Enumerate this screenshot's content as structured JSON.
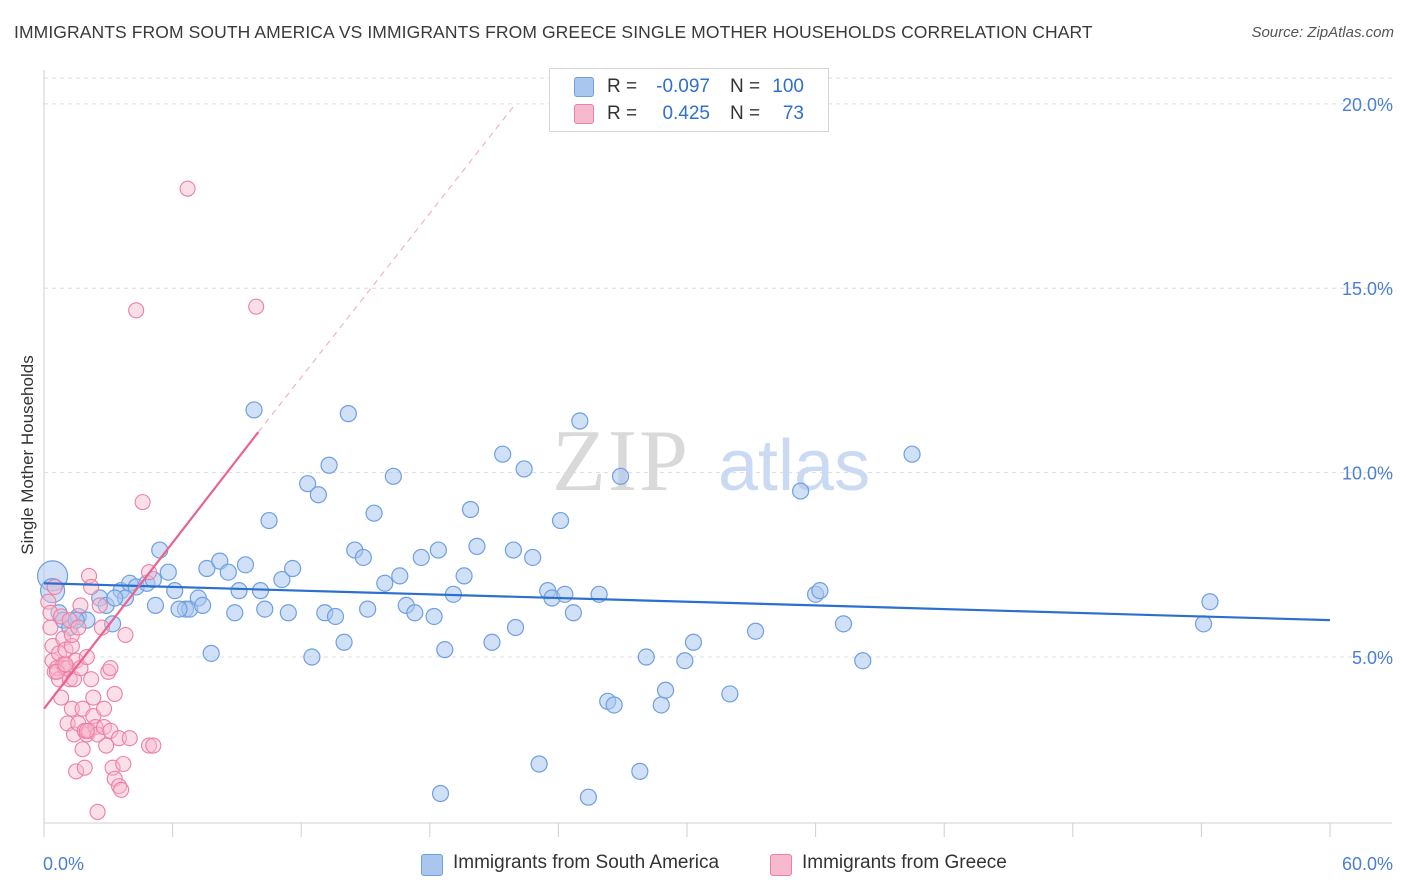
{
  "title": "IMMIGRANTS FROM SOUTH AMERICA VS IMMIGRANTS FROM GREECE SINGLE MOTHER HOUSEHOLDS CORRELATION CHART",
  "source": "Source: ZipAtlas.com",
  "watermark": {
    "zip": "ZIP",
    "atlas": "atlas"
  },
  "colors": {
    "blue_fill": "#a9c6ee",
    "blue_edge": "#6f9fe0",
    "blue_line": "#2c6fcf",
    "pink_fill": "#f6b9cd",
    "pink_edge": "#ec7fa3",
    "pink_line": "#e8638f",
    "axis_text": "#4a7fd4",
    "grid": "#dcdcdc"
  },
  "stats": {
    "rows": [
      {
        "r_label": "R =",
        "r_value": "-0.097",
        "n_label": "N =",
        "n_value": "100"
      },
      {
        "r_label": "R =",
        "r_value": "0.425",
        "n_label": "N =",
        "n_value": "73"
      }
    ]
  },
  "legend": {
    "items": [
      {
        "label": "Immigrants from South America"
      },
      {
        "label": "Immigrants from Greece"
      }
    ]
  },
  "chart_data": {
    "type": "scatter",
    "title": "IMMIGRANTS FROM SOUTH AMERICA VS IMMIGRANTS FROM GREECE SINGLE MOTHER HOUSEHOLDS CORRELATION CHART",
    "xlabel": "",
    "ylabel": "Single Mother Households",
    "xlim": [
      0,
      60
    ],
    "ylim": [
      0.5,
      20.7
    ],
    "x_tick_labels": [
      "0.0%",
      "60.0%"
    ],
    "y_ticks": [
      5,
      10,
      15,
      20
    ],
    "y_tick_labels": [
      "5.0%",
      "10.0%",
      "15.0%",
      "20.0%"
    ],
    "grid": true,
    "legend_position": "bottom",
    "series": [
      {
        "name": "Immigrants from South America",
        "trend": {
          "x": [
            0,
            60
          ],
          "y": [
            7.0,
            6.0
          ]
        },
        "points": [
          [
            0.4,
            7.2
          ],
          [
            0.4,
            6.8
          ],
          [
            0.7,
            6.2
          ],
          [
            0.9,
            6.0
          ],
          [
            1.2,
            5.8
          ],
          [
            1.6,
            6.1
          ],
          [
            2.0,
            6.0
          ],
          [
            2.6,
            6.6
          ],
          [
            2.9,
            6.4
          ],
          [
            3.2,
            5.9
          ],
          [
            3.6,
            6.8
          ],
          [
            3.8,
            6.6
          ],
          [
            4.0,
            7.0
          ],
          [
            4.3,
            6.9
          ],
          [
            4.8,
            7.0
          ],
          [
            5.1,
            7.1
          ],
          [
            5.2,
            6.4
          ],
          [
            5.4,
            7.9
          ],
          [
            5.8,
            7.3
          ],
          [
            6.1,
            6.8
          ],
          [
            6.6,
            6.3
          ],
          [
            6.8,
            6.3
          ],
          [
            7.2,
            6.6
          ],
          [
            7.4,
            6.4
          ],
          [
            7.6,
            7.4
          ],
          [
            7.8,
            5.1
          ],
          [
            8.2,
            7.6
          ],
          [
            8.6,
            7.3
          ],
          [
            8.9,
            6.2
          ],
          [
            9.1,
            6.8
          ],
          [
            9.4,
            7.5
          ],
          [
            9.8,
            11.7
          ],
          [
            10.1,
            6.8
          ],
          [
            10.3,
            6.3
          ],
          [
            10.5,
            8.7
          ],
          [
            11.1,
            7.1
          ],
          [
            11.4,
            6.2
          ],
          [
            11.6,
            7.4
          ],
          [
            12.3,
            9.7
          ],
          [
            12.5,
            5.0
          ],
          [
            12.8,
            9.4
          ],
          [
            13.1,
            6.2
          ],
          [
            13.3,
            10.2
          ],
          [
            13.6,
            6.1
          ],
          [
            14.0,
            5.4
          ],
          [
            14.2,
            11.6
          ],
          [
            14.5,
            7.9
          ],
          [
            14.9,
            7.7
          ],
          [
            15.1,
            6.3
          ],
          [
            15.4,
            8.9
          ],
          [
            15.9,
            7.0
          ],
          [
            16.3,
            9.9
          ],
          [
            16.6,
            7.2
          ],
          [
            16.9,
            6.4
          ],
          [
            17.3,
            6.2
          ],
          [
            17.6,
            7.7
          ],
          [
            18.2,
            6.1
          ],
          [
            18.4,
            7.9
          ],
          [
            18.7,
            5.2
          ],
          [
            19.1,
            6.7
          ],
          [
            19.6,
            7.2
          ],
          [
            19.9,
            9.0
          ],
          [
            20.2,
            8.0
          ],
          [
            20.9,
            5.4
          ],
          [
            21.4,
            10.5
          ],
          [
            21.9,
            7.9
          ],
          [
            22.0,
            5.8
          ],
          [
            22.4,
            10.1
          ],
          [
            22.8,
            7.7
          ],
          [
            23.1,
            2.1
          ],
          [
            23.5,
            6.8
          ],
          [
            23.7,
            6.6
          ],
          [
            24.1,
            8.7
          ],
          [
            24.3,
            6.7
          ],
          [
            24.7,
            6.2
          ],
          [
            25.0,
            11.4
          ],
          [
            25.4,
            1.2
          ],
          [
            25.9,
            6.7
          ],
          [
            26.3,
            3.8
          ],
          [
            26.6,
            3.7
          ],
          [
            26.9,
            9.9
          ],
          [
            27.8,
            1.9
          ],
          [
            28.1,
            5.0
          ],
          [
            28.8,
            3.7
          ],
          [
            29.0,
            4.1
          ],
          [
            29.9,
            4.9
          ],
          [
            30.3,
            5.4
          ],
          [
            32.0,
            4.0
          ],
          [
            33.2,
            5.7
          ],
          [
            35.3,
            9.5
          ],
          [
            36.0,
            6.7
          ],
          [
            36.2,
            6.8
          ],
          [
            37.3,
            5.9
          ],
          [
            38.2,
            4.9
          ],
          [
            40.5,
            10.5
          ],
          [
            18.5,
            1.3
          ],
          [
            6.3,
            6.3
          ],
          [
            3.3,
            6.6
          ],
          [
            1.5,
            6.0
          ],
          [
            54.1,
            5.9
          ],
          [
            54.4,
            6.5
          ]
        ]
      },
      {
        "name": "Immigrants from Greece",
        "trend": {
          "x": [
            0,
            10
          ],
          "y": [
            3.6,
            11.1
          ]
        },
        "trend_extension": {
          "x": [
            10,
            22
          ],
          "y": [
            11.1,
            20.0
          ]
        },
        "points": [
          [
            0.2,
            6.5
          ],
          [
            0.3,
            6.2
          ],
          [
            0.3,
            5.8
          ],
          [
            0.4,
            5.3
          ],
          [
            0.4,
            4.9
          ],
          [
            0.5,
            4.6
          ],
          [
            0.5,
            6.9
          ],
          [
            0.6,
            4.7
          ],
          [
            0.7,
            5.1
          ],
          [
            0.7,
            4.4
          ],
          [
            0.8,
            3.9
          ],
          [
            0.8,
            6.1
          ],
          [
            0.9,
            5.5
          ],
          [
            0.9,
            4.8
          ],
          [
            1.0,
            4.7
          ],
          [
            1.0,
            5.2
          ],
          [
            1.1,
            4.7
          ],
          [
            1.1,
            3.2
          ],
          [
            1.2,
            4.4
          ],
          [
            1.2,
            6.0
          ],
          [
            1.3,
            5.3
          ],
          [
            1.3,
            5.6
          ],
          [
            1.3,
            3.6
          ],
          [
            1.4,
            2.9
          ],
          [
            1.4,
            4.4
          ],
          [
            1.5,
            4.9
          ],
          [
            1.5,
            1.9
          ],
          [
            1.6,
            5.8
          ],
          [
            1.6,
            3.2
          ],
          [
            1.7,
            4.7
          ],
          [
            1.7,
            6.4
          ],
          [
            1.8,
            2.5
          ],
          [
            1.8,
            3.6
          ],
          [
            1.9,
            3.0
          ],
          [
            1.9,
            2.0
          ],
          [
            2.0,
            5.0
          ],
          [
            2.0,
            2.9
          ],
          [
            2.1,
            7.2
          ],
          [
            2.1,
            3.0
          ],
          [
            2.2,
            6.9
          ],
          [
            2.2,
            4.4
          ],
          [
            2.3,
            3.4
          ],
          [
            2.3,
            3.9
          ],
          [
            2.4,
            3.1
          ],
          [
            2.5,
            0.8
          ],
          [
            2.5,
            2.9
          ],
          [
            2.6,
            6.4
          ],
          [
            2.7,
            5.8
          ],
          [
            2.8,
            3.1
          ],
          [
            2.8,
            3.6
          ],
          [
            2.9,
            2.6
          ],
          [
            3.0,
            4.6
          ],
          [
            3.1,
            4.7
          ],
          [
            3.1,
            3.0
          ],
          [
            3.2,
            2.0
          ],
          [
            3.3,
            1.7
          ],
          [
            3.3,
            4.0
          ],
          [
            3.5,
            2.8
          ],
          [
            3.5,
            1.5
          ],
          [
            3.6,
            1.4
          ],
          [
            3.7,
            2.1
          ],
          [
            3.8,
            5.6
          ],
          [
            4.0,
            2.8
          ],
          [
            4.3,
            14.4
          ],
          [
            4.6,
            9.2
          ],
          [
            4.9,
            2.6
          ],
          [
            4.9,
            7.3
          ],
          [
            5.1,
            2.6
          ],
          [
            0.6,
            4.6
          ],
          [
            1.0,
            4.8
          ],
          [
            6.7,
            17.7
          ],
          [
            9.9,
            14.5
          ],
          [
            2.0,
            3.0
          ]
        ]
      }
    ]
  }
}
